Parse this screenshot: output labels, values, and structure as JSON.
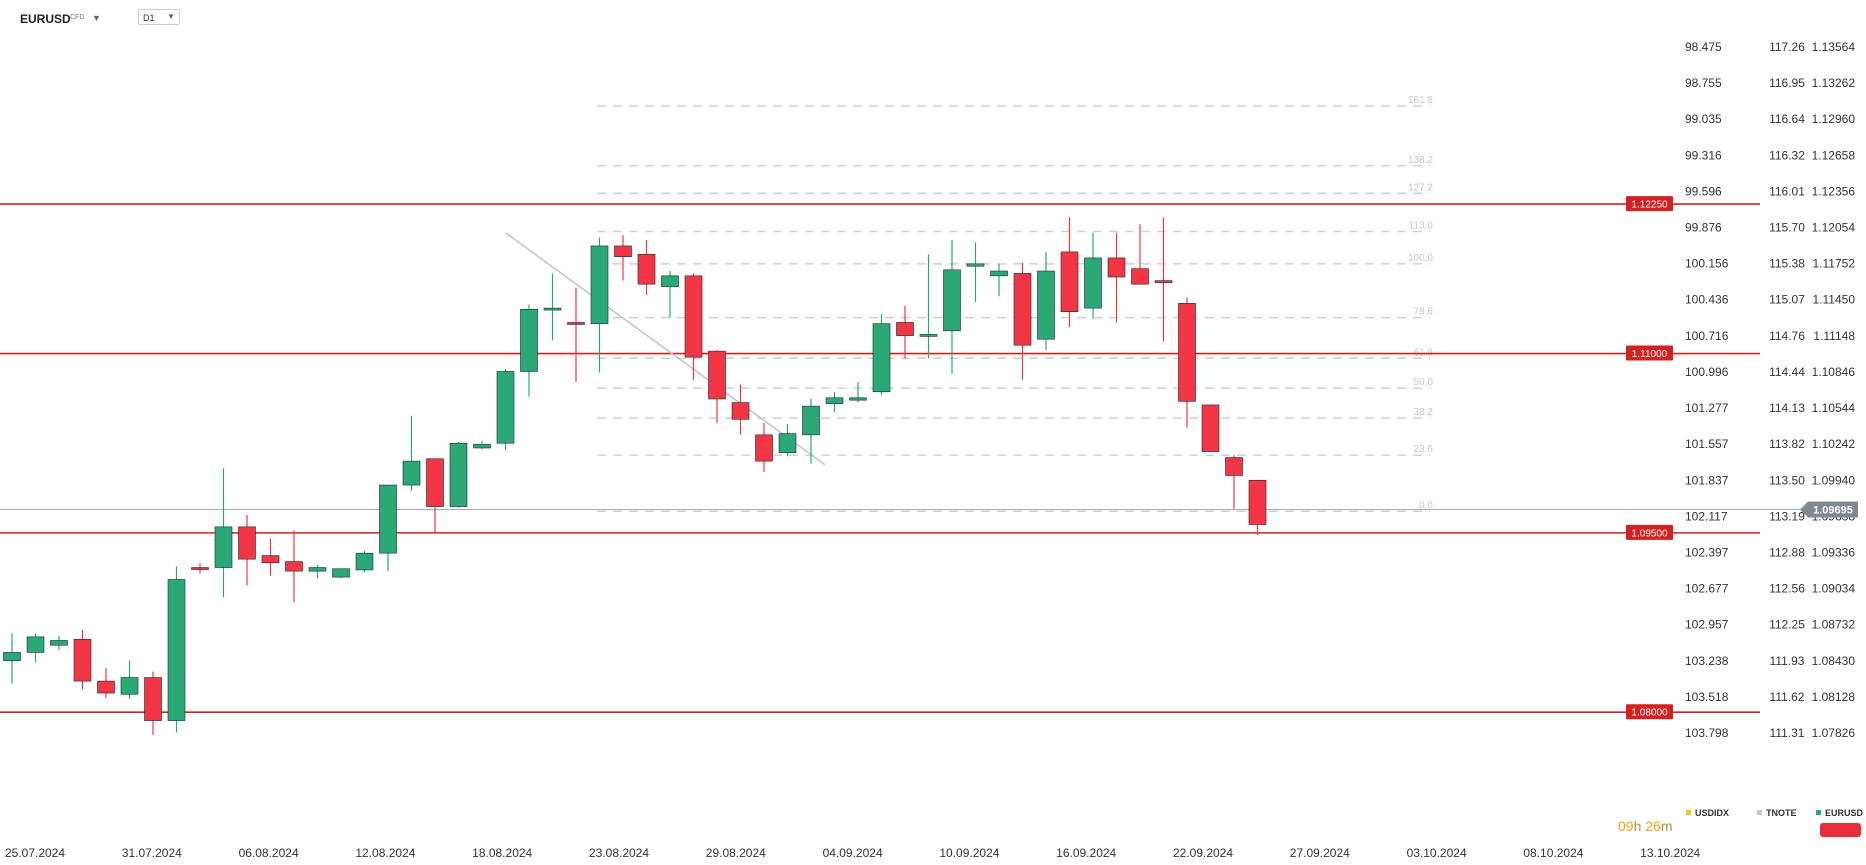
{
  "header": {
    "symbol": "EURUSD",
    "symbol_type": "CFD",
    "timeframe": "D1"
  },
  "countdown": {
    "hours": "09",
    "hours_unit": "h",
    "minutes": "26",
    "minutes_unit": "m"
  },
  "legend": [
    {
      "name": "USDIDX",
      "color": "#f5c518"
    },
    {
      "name": "TNOTE",
      "color": "#c8c8c8"
    },
    {
      "name": "EURUSD",
      "color": "#2aa876"
    }
  ],
  "colors": {
    "up": "#2aa876",
    "down": "#f23645",
    "level": "#d32020",
    "fib": "#cccccc",
    "trend": "#c0c6cc"
  },
  "chart_data": {
    "type": "candlestick",
    "x_ticks": [
      "25.07.2024",
      "31.07.2024",
      "06.08.2024",
      "12.08.2024",
      "18.08.2024",
      "23.08.2024",
      "29.08.2024",
      "04.09.2024",
      "10.09.2024",
      "16.09.2024",
      "22.09.2024",
      "27.09.2024",
      "03.10.2024",
      "08.10.2024",
      "13.10.2024"
    ],
    "y_range": [
      1.07675,
      1.13664
    ],
    "axes": {
      "eurusd": [
        "1.13564",
        "1.13262",
        "1.12960",
        "1.12658",
        "1.12356",
        "1.12054",
        "1.11752",
        "1.11450",
        "1.11148",
        "1.10846",
        "1.10544",
        "1.10242",
        "1.09940",
        "1.09638",
        "1.09336",
        "1.09034",
        "1.08732",
        "1.08430",
        "1.08128",
        "1.07826"
      ],
      "tnote": [
        "117.26",
        "116.95",
        "116.64",
        "116.32",
        "116.01",
        "115.70",
        "115.38",
        "115.07",
        "114.76",
        "114.44",
        "114.13",
        "113.82",
        "113.50",
        "113.19",
        "112.88",
        "112.56",
        "112.25",
        "111.93",
        "111.62",
        "111.31"
      ],
      "usdidx": [
        "98.475",
        "98.755",
        "99.035",
        "99.316",
        "99.596",
        "99.876",
        "100.156",
        "100.436",
        "100.716",
        "100.996",
        "101.277",
        "101.557",
        "101.837",
        "102.117",
        "102.397",
        "102.677",
        "102.957",
        "103.238",
        "103.518",
        "103.798"
      ]
    },
    "current_price": "1.09695",
    "levels": [
      {
        "label": "1.12250",
        "value": 1.1225
      },
      {
        "label": "1.11000",
        "value": 1.11
      },
      {
        "label": "1.09500",
        "value": 1.095
      },
      {
        "label": "1.08000",
        "value": 1.08
      }
    ],
    "fib_levels": [
      {
        "label": "161.8",
        "value": 1.1307
      },
      {
        "label": "138.2",
        "value": 1.1257
      },
      {
        "label": "127.2",
        "value": 1.1234
      },
      {
        "label": "113.0",
        "value": 1.1202
      },
      {
        "label": "100.0",
        "value": 1.1175
      },
      {
        "label": "78.6",
        "value": 1.113
      },
      {
        "label": "61.8",
        "value": 1.1096
      },
      {
        "label": "50.0",
        "value": 1.1071
      },
      {
        "label": "38.2",
        "value": 1.1046
      },
      {
        "label": "23.6",
        "value": 1.1015
      },
      {
        "label": "0.0",
        "value": 1.0968
      }
    ],
    "trend_line": {
      "from": {
        "date": "23.08.2024",
        "value": 1.1201
      },
      "to": {
        "date": "11.09.2024",
        "value": 1.1007
      }
    },
    "candles": [
      {
        "date": "25.07.2024",
        "o": 1.0843,
        "h": 1.0866,
        "l": 1.0824,
        "c": 1.085
      },
      {
        "date": "26.07.2024",
        "o": 1.085,
        "h": 1.0866,
        "l": 1.0842,
        "c": 1.0863
      },
      {
        "date": "29.07.2024",
        "o": 1.0856,
        "h": 1.0864,
        "l": 1.0852,
        "c": 1.086
      },
      {
        "date": "30.07.2024",
        "o": 1.0861,
        "h": 1.0869,
        "l": 1.0819,
        "c": 1.0826
      },
      {
        "date": "31.07.2024",
        "o": 1.0826,
        "h": 1.0837,
        "l": 1.0812,
        "c": 1.0816
      },
      {
        "date": "01.08.2024",
        "o": 1.0815,
        "h": 1.0843,
        "l": 1.0811,
        "c": 1.0829
      },
      {
        "date": "02.08.2024",
        "o": 1.0829,
        "h": 1.0834,
        "l": 1.0781,
        "c": 1.0793
      },
      {
        "date": "05.08.2024",
        "o": 1.0793,
        "h": 1.0922,
        "l": 1.0783,
        "c": 1.0911
      },
      {
        "date": "06.08.2024",
        "o": 1.0921,
        "h": 1.0925,
        "l": 1.0916,
        "c": 1.092
      },
      {
        "date": "07.08.2024",
        "o": 1.0921,
        "h": 1.1004,
        "l": 1.0896,
        "c": 1.0955
      },
      {
        "date": "08.08.2024",
        "o": 1.0955,
        "h": 1.0965,
        "l": 1.0906,
        "c": 1.0928
      },
      {
        "date": "09.08.2024",
        "o": 1.0931,
        "h": 1.0945,
        "l": 1.0914,
        "c": 1.0925
      },
      {
        "date": "12.08.2024",
        "o": 1.0926,
        "h": 1.0952,
        "l": 1.0892,
        "c": 1.0918
      },
      {
        "date": "13.08.2024",
        "o": 1.0918,
        "h": 1.0923,
        "l": 1.0912,
        "c": 1.0921
      },
      {
        "date": "14.08.2024",
        "o": 1.0913,
        "h": 1.092,
        "l": 1.0912,
        "c": 1.092
      },
      {
        "date": "15.08.2024",
        "o": 1.0919,
        "h": 1.0935,
        "l": 1.0917,
        "c": 1.0933
      },
      {
        "date": "16.08.2024",
        "o": 1.0933,
        "h": 1.0989,
        "l": 1.0918,
        "c": 1.099
      },
      {
        "date": "19.08.2024",
        "o": 1.099,
        "h": 1.1048,
        "l": 1.0985,
        "c": 1.101
      },
      {
        "date": "20.08.2024",
        "o": 1.1012,
        "h": 1.1012,
        "l": 1.095,
        "c": 1.0972
      },
      {
        "date": "21.08.2024",
        "o": 1.0972,
        "h": 1.1026,
        "l": 1.0971,
        "c": 1.1025
      },
      {
        "date": "22.08.2024",
        "o": 1.1021,
        "h": 1.1027,
        "l": 1.102,
        "c": 1.1024
      },
      {
        "date": "23.08.2024",
        "o": 1.1025,
        "h": 1.1087,
        "l": 1.1019,
        "c": 1.1085
      },
      {
        "date": "26.08.2024",
        "o": 1.1085,
        "h": 1.1141,
        "l": 1.1064,
        "c": 1.1137
      },
      {
        "date": "27.08.2024",
        "o": 1.1137,
        "h": 1.1167,
        "l": 1.1111,
        "c": 1.1138
      },
      {
        "date": "28.08.2024",
        "o": 1.1126,
        "h": 1.1155,
        "l": 1.1076,
        "c": 1.1125
      },
      {
        "date": "29.08.2024",
        "o": 1.1125,
        "h": 1.1197,
        "l": 1.1084,
        "c": 1.119
      },
      {
        "date": "30.08.2024",
        "o": 1.119,
        "h": 1.1199,
        "l": 1.1161,
        "c": 1.1181
      },
      {
        "date": "02.09.2024",
        "o": 1.1183,
        "h": 1.1195,
        "l": 1.1149,
        "c": 1.1158
      },
      {
        "date": "03.09.2024",
        "o": 1.1156,
        "h": 1.1169,
        "l": 1.113,
        "c": 1.1165
      },
      {
        "date": "04.09.2024",
        "o": 1.1165,
        "h": 1.1167,
        "l": 1.1078,
        "c": 1.1097
      },
      {
        "date": "05.09.2024",
        "o": 1.1102,
        "h": 1.1103,
        "l": 1.1042,
        "c": 1.1062
      },
      {
        "date": "06.09.2024",
        "o": 1.1059,
        "h": 1.1074,
        "l": 1.1032,
        "c": 1.1045
      },
      {
        "date": "09.09.2024",
        "o": 1.1032,
        "h": 1.1042,
        "l": 1.1001,
        "c": 1.101
      },
      {
        "date": "10.09.2024",
        "o": 1.1017,
        "h": 1.1041,
        "l": 1.1014,
        "c": 1.1033
      },
      {
        "date": "11.09.2024",
        "o": 1.1032,
        "h": 1.1062,
        "l": 1.1008,
        "c": 1.1056
      },
      {
        "date": "12.09.2024",
        "o": 1.1058,
        "h": 1.1068,
        "l": 1.1051,
        "c": 1.1063
      },
      {
        "date": "13.09.2024",
        "o": 1.1061,
        "h": 1.1076,
        "l": 1.1059,
        "c": 1.1063
      },
      {
        "date": "16.09.2024",
        "o": 1.1068,
        "h": 1.1133,
        "l": 1.1065,
        "c": 1.1125
      },
      {
        "date": "17.09.2024",
        "o": 1.1126,
        "h": 1.114,
        "l": 1.1096,
        "c": 1.1115
      },
      {
        "date": "18.09.2024",
        "o": 1.1115,
        "h": 1.1183,
        "l": 1.1096,
        "c": 1.1116
      },
      {
        "date": "19.09.2024",
        "o": 1.1119,
        "h": 1.1195,
        "l": 1.1083,
        "c": 1.117
      },
      {
        "date": "20.09.2024",
        "o": 1.1173,
        "h": 1.1193,
        "l": 1.1143,
        "c": 1.1175
      },
      {
        "date": "23.09.2024",
        "o": 1.1165,
        "h": 1.1175,
        "l": 1.1148,
        "c": 1.1169
      },
      {
        "date": "24.09.2024",
        "o": 1.1167,
        "h": 1.1176,
        "l": 1.1078,
        "c": 1.1107
      },
      {
        "date": "25.09.2024",
        "o": 1.1112,
        "h": 1.1185,
        "l": 1.1103,
        "c": 1.1169
      },
      {
        "date": "26.09.2024",
        "o": 1.1185,
        "h": 1.1214,
        "l": 1.1122,
        "c": 1.1135
      },
      {
        "date": "27.09.2024",
        "o": 1.1138,
        "h": 1.1201,
        "l": 1.1129,
        "c": 1.118
      },
      {
        "date": "30.09.2024",
        "o": 1.118,
        "h": 1.1201,
        "l": 1.1126,
        "c": 1.1164
      },
      {
        "date": "01.10.2024",
        "o": 1.1171,
        "h": 1.1208,
        "l": 1.1163,
        "c": 1.1158
      },
      {
        "date": "02.10.2024",
        "o": 1.1161,
        "h": 1.1214,
        "l": 1.111,
        "c": 1.116
      },
      {
        "date": "03.10.2024",
        "o": 1.1142,
        "h": 1.1147,
        "l": 1.1038,
        "c": 1.106
      },
      {
        "date": "04.10.2024",
        "o": 1.1057,
        "h": 1.1056,
        "l": 1.102,
        "c": 1.1018
      },
      {
        "date": "07.10.2024",
        "o": 1.1013,
        "h": 1.1015,
        "l": 1.097,
        "c": 1.0998
      },
      {
        "date": "08.10.2024",
        "o": 1.0994,
        "h": 1.0989,
        "l": 1.0948,
        "c": 1.0957
      }
    ]
  }
}
